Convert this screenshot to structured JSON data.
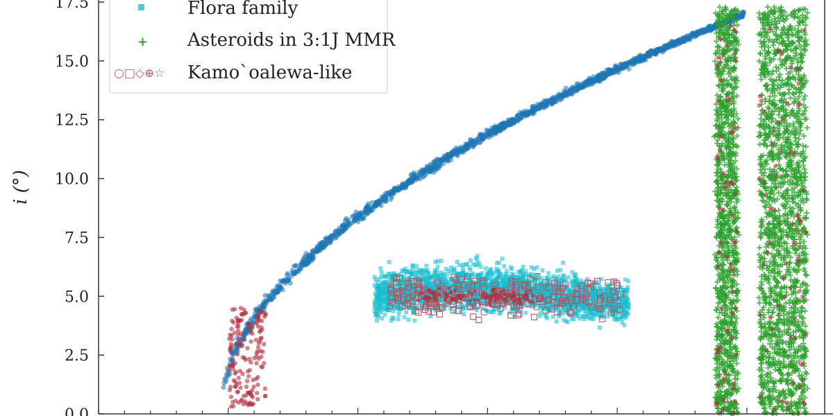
{
  "chart_data": {
    "type": "scatter",
    "ylabel": "i (°)",
    "xlabel": "",
    "ylim": [
      0,
      17.5
    ],
    "yticks": [
      0.0,
      2.5,
      5.0,
      7.5,
      10.0,
      12.5,
      15.0,
      17.5
    ],
    "ytick_labels": [
      "0.0",
      "2.5",
      "5.0",
      "7.5",
      "10.0",
      "12.5",
      "15.0",
      "17.5"
    ],
    "xlim": [
      0,
      1
    ],
    "grid": false,
    "legend_position": "top-left",
    "legend": [
      {
        "label": "Flora family",
        "marker": "square",
        "color": "#4ec9d6"
      },
      {
        "label": "Asteroids in 3:1J MMR",
        "marker": "plus",
        "color": "#2ca02c"
      },
      {
        "label": "Kamo`oalewa-like",
        "marker": "○□◇⊕☆",
        "color": "#c06070"
      }
    ],
    "colors": {
      "background_population": "#1f77b4",
      "flora_family": "#17becf",
      "mmr_3_1": "#2ca02c",
      "kamooalewa_like": "#b03040"
    },
    "series": [
      {
        "name": "",
        "color": "#1f77b4",
        "shape": "arc",
        "x_range": [
          0.17,
          0.89
        ],
        "y_range": [
          0.5,
          17.0
        ]
      },
      {
        "name": "Flora family",
        "color": "#17becf",
        "shape": "cluster",
        "x_range": [
          0.38,
          0.73
        ],
        "y_range": [
          2.2,
          8.0
        ]
      },
      {
        "name": "Asteroids in 3:1J MMR",
        "color": "#2ca02c",
        "shape": "column",
        "x_range": [
          0.85,
          0.88
        ],
        "y_range": [
          0.0,
          17.5
        ]
      },
      {
        "name": "Asteroids in 3:1J MMR",
        "color": "#2ca02c",
        "shape": "column",
        "x_range": [
          0.91,
          0.97
        ],
        "y_range": [
          0.0,
          17.5
        ]
      }
    ]
  }
}
